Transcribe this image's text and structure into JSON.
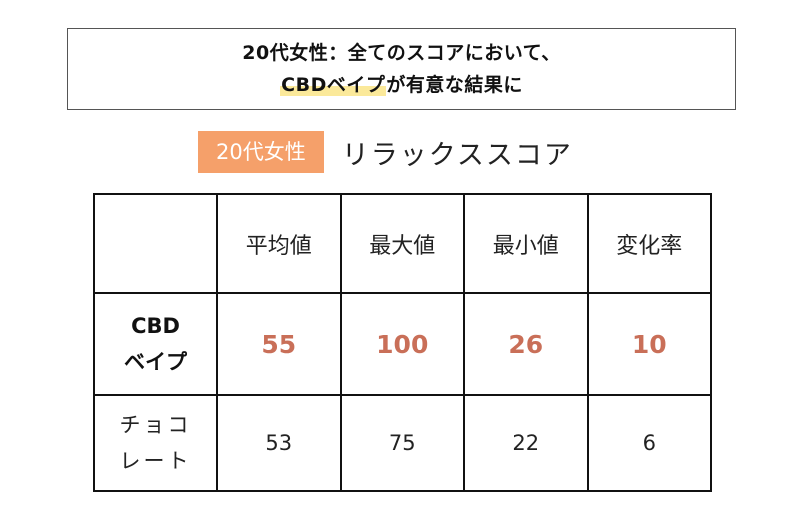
{
  "headline": {
    "line1": "20代女性：全てのスコアにおいて、",
    "line2_highlight": "CBDベイプ",
    "line2_rest": "が有意な結果に"
  },
  "section": {
    "group_badge": "20代女性",
    "score_title": "リラックススコア"
  },
  "table": {
    "columns": [
      "平均値",
      "最大値",
      "最小値",
      "変化率"
    ],
    "rows": [
      {
        "label_line1": "CBD",
        "label_line2": "ベイプ",
        "values": [
          "55",
          "100",
          "26",
          "10"
        ]
      },
      {
        "label_line1": "チョコ",
        "label_line2": "レート",
        "values": [
          "53",
          "75",
          "22",
          "6"
        ]
      }
    ]
  },
  "colors": {
    "badge": "#f5a06a",
    "accent_value": "#c96f58",
    "highlight": "#fbe99a"
  }
}
